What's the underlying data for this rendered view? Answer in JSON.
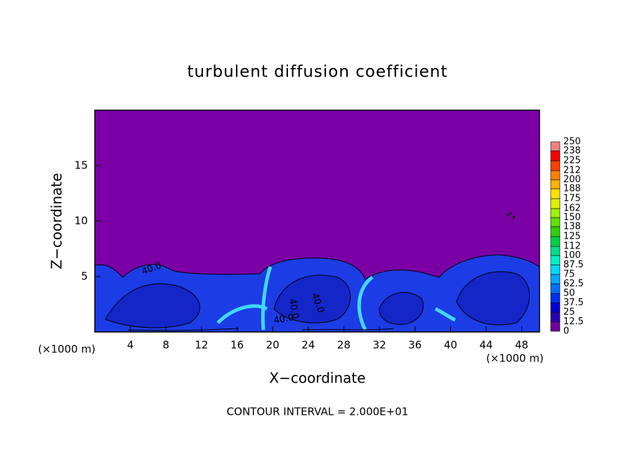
{
  "chart_data": {
    "type": "contour",
    "title": "turbulent diffusion coefficient",
    "x_label": "X−coordinate",
    "y_label": "Z−coordinate",
    "x_unit": "(×1000 m)",
    "y_unit": "(×1000 m)",
    "footer": "CONTOUR INTERVAL = 2.000E+01",
    "xlim": [
      0,
      50
    ],
    "ylim": [
      0,
      20
    ],
    "xticks": [
      4,
      8,
      12,
      16,
      20,
      24,
      28,
      32,
      36,
      40,
      44,
      48
    ],
    "yticks": [
      5,
      10,
      15
    ],
    "contour_labels": [
      {
        "value": 40,
        "label": "40.0"
      },
      {
        "value": 40,
        "label": "40.0"
      },
      {
        "value": 40,
        "label": "40.0"
      },
      {
        "value": 40,
        "label": "40.0"
      }
    ],
    "colorbar": {
      "levels": [
        0,
        12.5,
        25,
        37.5,
        50,
        62.5,
        75,
        87.5,
        100,
        112,
        125,
        138,
        150,
        162,
        175,
        188,
        200,
        212,
        225,
        238,
        250
      ],
      "colors": [
        "#7000a0",
        "#2a00b4",
        "#0000d0",
        "#0030f0",
        "#0070ff",
        "#00a8ff",
        "#00d8ff",
        "#00f0c8",
        "#00e088",
        "#00d048",
        "#30d000",
        "#60e000",
        "#a0f000",
        "#e0f000",
        "#ffe000",
        "#ffb000",
        "#ff8000",
        "#ff4000",
        "#ff0000",
        "#f08080"
      ]
    }
  }
}
